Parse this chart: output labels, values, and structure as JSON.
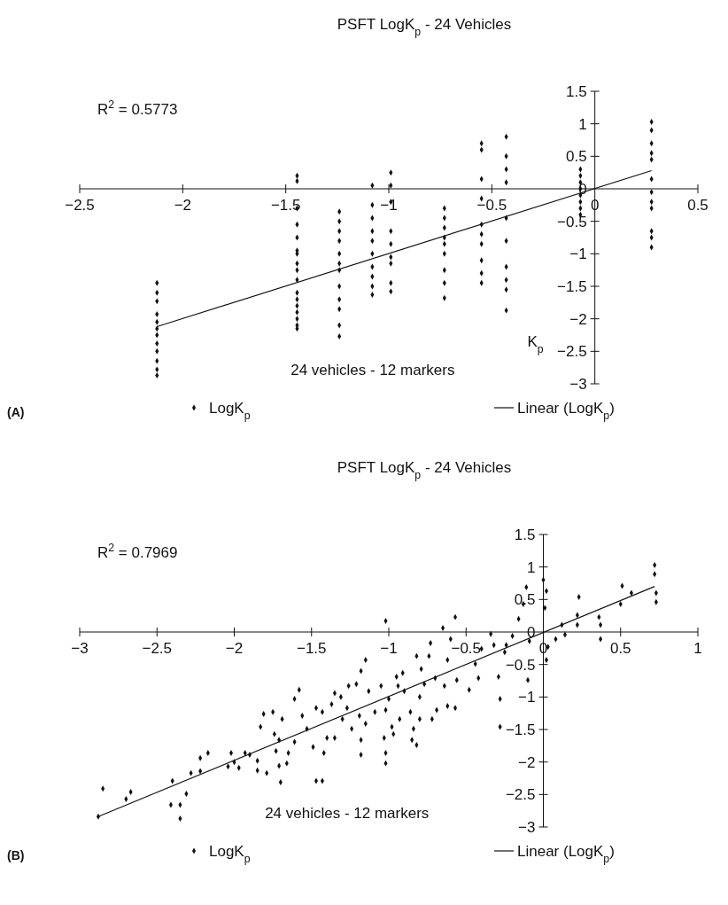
{
  "chart_data": [
    {
      "type": "scatter",
      "title": "PSFT LogK$_{p}$ - 24 Vehicles",
      "xlabel": "24 vehicles - 12 markers",
      "annotations": [
        "R$^{2}$ = 0.5773",
        "K$_{p}$",
        "(A)"
      ],
      "xlim": [
        -2.5,
        0.5
      ],
      "xticks": [
        -2.5,
        -2,
        -1.5,
        -1,
        -0.5,
        0,
        0.5
      ],
      "ylim": [
        -3,
        1.5
      ],
      "yticks": [
        -3,
        -2.5,
        -2,
        -1.5,
        -1,
        -0.5,
        0,
        0.5,
        1,
        1.5
      ],
      "legend": "bottom",
      "marker": "diamond",
      "series": [
        {
          "name": "LogK$_{p}$",
          "color": "#111111",
          "x": [
            -2.125,
            -2.125,
            -2.125,
            -2.125,
            -2.125,
            -2.125,
            -2.125,
            -2.125,
            -2.125,
            -2.125,
            -2.125,
            -2.125,
            -1.445,
            -1.445,
            -1.445,
            -1.445,
            -1.445,
            -1.445,
            -1.445,
            -1.445,
            -1.445,
            -1.445,
            -1.445,
            -1.445,
            -1.445,
            -1.445,
            -1.445,
            -1.445,
            -1.445,
            -1.24,
            -1.24,
            -1.24,
            -1.24,
            -1.24,
            -1.24,
            -1.24,
            -1.24,
            -1.24,
            -1.24,
            -1.24,
            -1.24,
            -1.08,
            -1.08,
            -1.08,
            -1.08,
            -1.08,
            -1.08,
            -1.08,
            -1.08,
            -1.08,
            -1.08,
            -0.99,
            -0.99,
            -0.99,
            -0.99,
            -0.99,
            -0.99,
            -0.99,
            -0.99,
            -0.99,
            -0.73,
            -0.73,
            -0.73,
            -0.73,
            -0.73,
            -0.73,
            -0.73,
            -0.73,
            -0.73,
            -0.55,
            -0.55,
            -0.55,
            -0.55,
            -0.55,
            -0.55,
            -0.55,
            -0.55,
            -0.55,
            -0.55,
            -0.43,
            -0.43,
            -0.43,
            -0.43,
            -0.43,
            -0.43,
            -0.43,
            -0.43,
            -0.43,
            -0.43,
            -0.07,
            -0.07,
            -0.07,
            -0.07,
            -0.07,
            -0.07,
            -0.07,
            -0.07,
            0.275,
            0.275,
            0.275,
            0.275,
            0.275,
            0.275,
            0.275,
            0.275,
            0.275,
            0.275,
            0.275,
            0.275
          ],
          "values": [
            -1.45,
            -1.6,
            -1.73,
            -1.93,
            -2.05,
            -2.15,
            -2.25,
            -2.38,
            -2.5,
            -2.65,
            -2.78,
            -2.87,
            0.2,
            0.12,
            -0.3,
            -0.55,
            -0.75,
            -0.95,
            -1.0,
            -1.15,
            -1.25,
            -1.4,
            -1.6,
            -1.7,
            -1.8,
            -1.9,
            -2.0,
            -2.1,
            -2.15,
            -0.35,
            -0.5,
            -0.65,
            -0.8,
            -1.0,
            -1.15,
            -1.25,
            -1.5,
            -1.7,
            -1.85,
            -2.1,
            -2.27,
            0.05,
            -0.25,
            -0.45,
            -0.65,
            -0.8,
            -1.0,
            -1.2,
            -1.35,
            -1.5,
            -1.63,
            0.25,
            0.05,
            -0.2,
            -0.65,
            -0.85,
            -1.05,
            -1.15,
            -1.45,
            -1.58,
            -0.3,
            -0.45,
            -0.6,
            -0.75,
            -0.85,
            -1.0,
            -1.25,
            -1.45,
            -1.68,
            0.7,
            0.6,
            0.15,
            -0.15,
            -0.55,
            -0.7,
            -0.85,
            -1.1,
            -1.3,
            -1.45,
            0.8,
            0.5,
            0.3,
            0.1,
            -0.45,
            -0.8,
            -1.2,
            -1.4,
            -1.55,
            -1.87,
            0.3,
            0.2,
            0.1,
            0.0,
            -0.1,
            -0.2,
            -0.3,
            -0.4,
            1.03,
            0.9,
            0.7,
            0.55,
            0.45,
            0.15,
            -0.05,
            -0.2,
            -0.3,
            -0.65,
            -0.75,
            -0.9
          ]
        },
        {
          "name": "Linear (LogK$_{p}$)",
          "type": "line",
          "color": "#111111",
          "marker": "none",
          "x": [
            -2.125,
            0.275
          ],
          "values": [
            -2.12,
            0.28
          ]
        }
      ]
    },
    {
      "type": "scatter",
      "title": "PSFT LogK$_{p}$ - 24 Vehicles",
      "xlabel": "24 vehicles - 12 markers",
      "annotations": [
        "R$^{2}$ = 0.7969",
        "(B)"
      ],
      "xlim": [
        -3,
        1
      ],
      "xticks": [
        -3,
        -2.5,
        -2,
        -1.5,
        -1,
        -0.5,
        0,
        0.5,
        1
      ],
      "ylim": [
        -3,
        1.5
      ],
      "yticks": [
        -3,
        -2.5,
        -2,
        -1.5,
        -1,
        -0.5,
        0,
        0.5,
        1,
        1.5
      ],
      "legend": "bottom",
      "marker": "diamond",
      "series": [
        {
          "name": "LogK$_{p}$",
          "color": "#111111",
          "x": [
            -2.85,
            -2.88,
            -2.7,
            -2.67,
            -2.4,
            -2.41,
            -2.35,
            -2.35,
            -2.31,
            -2.28,
            -2.22,
            -2.22,
            -2.17,
            -2.04,
            -2.02,
            -2.0,
            -1.97,
            -1.93,
            -1.9,
            -1.85,
            -1.85,
            -1.83,
            -1.81,
            -1.79,
            -1.75,
            -1.74,
            -1.73,
            -1.71,
            -1.71,
            -1.7,
            -1.69,
            -1.66,
            -1.65,
            -1.61,
            -1.61,
            -1.58,
            -1.56,
            -1.53,
            -1.49,
            -1.47,
            -1.47,
            -1.43,
            -1.43,
            -1.42,
            -1.4,
            -1.37,
            -1.35,
            -1.35,
            -1.31,
            -1.3,
            -1.27,
            -1.26,
            -1.24,
            -1.21,
            -1.19,
            -1.18,
            -1.18,
            -1.18,
            -1.15,
            -1.15,
            -1.13,
            -1.09,
            -1.05,
            -1.03,
            -1.02,
            -1.02,
            -1.02,
            -1.02,
            -1.0,
            -0.98,
            -0.97,
            -0.95,
            -0.94,
            -0.93,
            -0.91,
            -0.9,
            -0.86,
            -0.85,
            -0.84,
            -0.82,
            -0.82,
            -0.8,
            -0.8,
            -0.79,
            -0.77,
            -0.74,
            -0.73,
            -0.72,
            -0.7,
            -0.69,
            -0.65,
            -0.64,
            -0.62,
            -0.62,
            -0.6,
            -0.57,
            -0.57,
            -0.56,
            -0.48,
            -0.44,
            -0.42,
            -0.4,
            -0.34,
            -0.32,
            -0.29,
            -0.28,
            -0.28,
            -0.25,
            -0.24,
            -0.2,
            -0.16,
            -0.13,
            -0.11,
            -0.1,
            -0.09,
            0.0,
            0.01,
            0.02,
            0.02,
            0.03,
            0.08,
            0.12,
            0.14,
            0.22,
            0.23,
            0.22,
            0.36,
            0.37,
            0.37,
            0.51,
            0.5,
            0.57,
            0.72,
            0.72,
            0.73,
            0.73
          ],
          "values": [
            -2.41,
            -2.84,
            -2.57,
            -2.46,
            -2.29,
            -2.66,
            -2.66,
            -2.87,
            -2.49,
            -2.17,
            -2.14,
            -1.94,
            -1.86,
            -2.07,
            -1.86,
            -2.0,
            -2.09,
            -1.86,
            -1.89,
            -1.98,
            -2.13,
            -1.46,
            -1.26,
            -2.17,
            -1.23,
            -1.57,
            -1.83,
            -2.06,
            -1.66,
            -2.31,
            -1.34,
            -2.02,
            -1.86,
            -1.69,
            -1.03,
            -0.89,
            -1.29,
            -1.49,
            -1.77,
            -1.17,
            -2.29,
            -2.29,
            -1.23,
            -1.86,
            -1.63,
            -1.11,
            -0.94,
            -1.63,
            -1.0,
            -1.34,
            -1.17,
            -0.83,
            -1.49,
            -0.8,
            -1.29,
            -1.66,
            -1.89,
            -0.6,
            -1.41,
            -0.43,
            -0.91,
            -1.23,
            -0.83,
            -1.63,
            -1.86,
            -2.02,
            0.17,
            -1.2,
            -1.03,
            -1.46,
            -1.57,
            -0.69,
            -0.83,
            -1.34,
            -0.63,
            -0.91,
            -1.23,
            -1.66,
            -1.49,
            -1.74,
            -0.37,
            -1.0,
            -1.34,
            -0.57,
            -0.8,
            -0.37,
            -0.17,
            -1.34,
            -0.71,
            -1.2,
            0.06,
            -0.83,
            -1.14,
            -0.43,
            -0.11,
            0.23,
            -1.17,
            -0.74,
            -0.89,
            -0.49,
            -0.71,
            -0.26,
            -0.03,
            -0.2,
            -0.69,
            -1.03,
            -1.46,
            -0.31,
            -0.2,
            -0.06,
            0.2,
            0.43,
            0.69,
            -0.74,
            -0.14,
            0.8,
            0.37,
            0.63,
            -0.43,
            -0.23,
            -0.11,
            0.11,
            -0.04,
            0.11,
            0.54,
            0.26,
            0.23,
            -0.11,
            0.11,
            0.71,
            0.43,
            0.6,
            1.03,
            0.89,
            0.6,
            0.46
          ]
        },
        {
          "name": "Linear (LogK$_{p}$)",
          "type": "line",
          "color": "#111111",
          "marker": "none",
          "x": [
            -2.88,
            0.72
          ],
          "values": [
            -2.84,
            0.7
          ]
        }
      ]
    }
  ]
}
